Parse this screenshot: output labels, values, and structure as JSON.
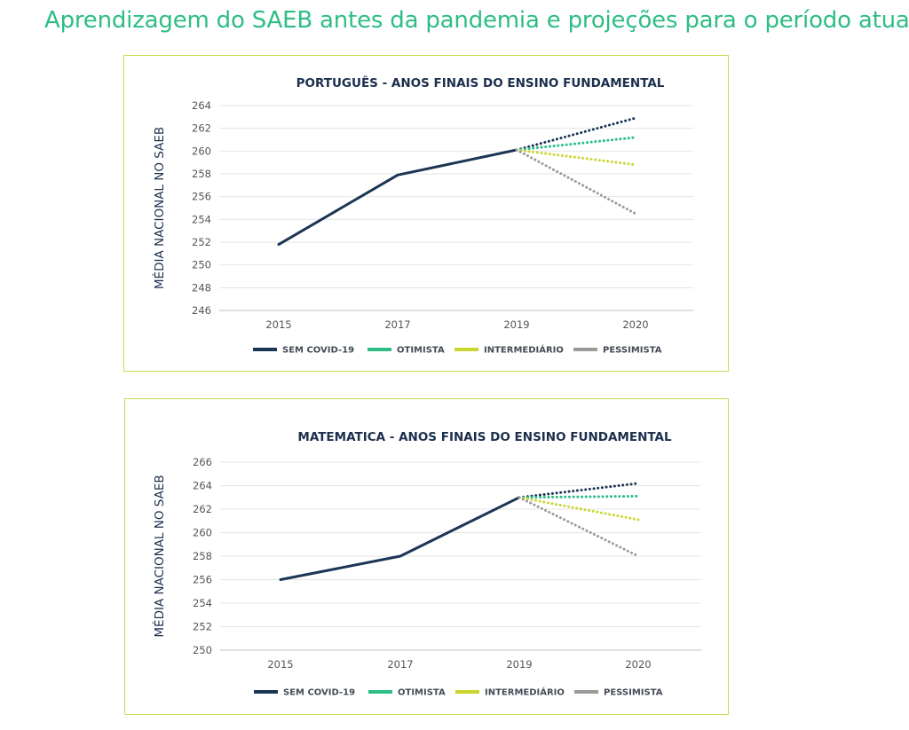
{
  "page": {
    "title": "Aprendizagem do SAEB antes da pandemia e projeções para o período atual"
  },
  "chart_data": [
    {
      "type": "line",
      "title": "PORTUGUÊS - ANOS FINAIS DO ENSINO FUNDAMENTAL",
      "xlabel": "",
      "ylabel": "MÉDIA NACIONAL NO SAEB",
      "categories": [
        "2015",
        "2017",
        "2019",
        "2020"
      ],
      "ylim": [
        246,
        264
      ],
      "yticks": [
        246,
        248,
        250,
        252,
        254,
        256,
        258,
        260,
        262,
        264
      ],
      "grid": true,
      "legend": "bottom",
      "series": [
        {
          "name": "SEM COVID-19",
          "color": "#1b3554",
          "style": "solid",
          "values": [
            251.8,
            257.9,
            260.1,
            null
          ]
        },
        {
          "name": "SEM COVID-19",
          "color": "#1b3554",
          "style": "dotted",
          "legend": false,
          "values": [
            null,
            null,
            260.1,
            262.9
          ]
        },
        {
          "name": "OTIMISTA",
          "color": "#2ebd85",
          "style": "dotted",
          "values": [
            null,
            null,
            260.1,
            261.2
          ]
        },
        {
          "name": "INTERMEDIÁRIO",
          "color": "#c9d62f",
          "style": "dotted",
          "values": [
            null,
            null,
            260.1,
            258.8
          ]
        },
        {
          "name": "PESSIMISTA",
          "color": "#9a9a9a",
          "style": "dotted",
          "values": [
            null,
            null,
            260.1,
            254.5
          ]
        }
      ]
    },
    {
      "type": "line",
      "title": "MATEMATICA -  ANOS FINAIS DO ENSINO FUNDAMENTAL",
      "xlabel": "",
      "ylabel": "MÉDIA NACIONAL NO SAEB",
      "categories": [
        "2015",
        "2017",
        "2019",
        "2020"
      ],
      "ylim": [
        250,
        266
      ],
      "yticks": [
        250,
        252,
        254,
        256,
        258,
        260,
        262,
        264,
        266
      ],
      "grid": true,
      "legend": "bottom",
      "series": [
        {
          "name": "SEM COVID-19",
          "color": "#1b3554",
          "style": "solid",
          "values": [
            256.0,
            258.0,
            263.0,
            null
          ]
        },
        {
          "name": "SEM COVID-19",
          "color": "#1b3554",
          "style": "dotted",
          "legend": false,
          "values": [
            null,
            null,
            263.0,
            264.2
          ]
        },
        {
          "name": "OTIMISTA",
          "color": "#2ebd85",
          "style": "dotted",
          "values": [
            null,
            null,
            263.0,
            263.1
          ]
        },
        {
          "name": "INTERMEDIÁRIO",
          "color": "#c9d62f",
          "style": "dotted",
          "values": [
            null,
            null,
            263.0,
            261.1
          ]
        },
        {
          "name": "PESSIMISTA",
          "color": "#9a9a9a",
          "style": "dotted",
          "values": [
            null,
            null,
            263.0,
            258.0
          ]
        }
      ]
    }
  ]
}
